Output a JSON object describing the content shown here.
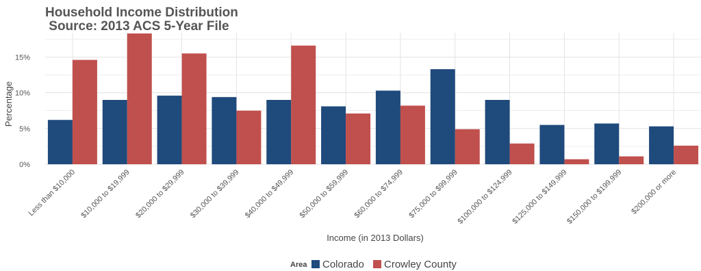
{
  "chart_data": {
    "type": "bar",
    "title_line1": "Household Income Distribution",
    "title_line2": " Source: 2013 ACS 5-Year File",
    "xlabel": "Income (in 2013 Dollars)",
    "ylabel": "Percentage",
    "ylim": [
      0,
      0.18
    ],
    "yticks": [
      0,
      0.05,
      0.1,
      0.15
    ],
    "ytick_labels": [
      "0%",
      "5%",
      "10%",
      "15%"
    ],
    "grid": true,
    "legend": {
      "title": "Area",
      "position": "bottom"
    },
    "categories": [
      "Less than $10,000",
      "$10,000 to $19,999",
      "$20,000 to $29,999",
      "$30,000 to $39,999",
      "$40,000 to $49,999",
      "$50,000 to $59,999",
      "$60,000 to $74,999",
      "$75,000 to $99,999",
      "$100,000 to $124,999",
      "$125,000 to $149,999",
      "$150,000 to $199,999",
      "$200,000 or more"
    ],
    "series": [
      {
        "name": "Colorado",
        "color": "#1f4a7c",
        "values": [
          0.062,
          0.09,
          0.096,
          0.094,
          0.09,
          0.081,
          0.103,
          0.133,
          0.09,
          0.055,
          0.057,
          0.053
        ]
      },
      {
        "name": "Crowley County",
        "color": "#c0504d",
        "values": [
          0.146,
          0.183,
          0.155,
          0.075,
          0.166,
          0.071,
          0.082,
          0.049,
          0.029,
          0.007,
          0.011,
          0.026
        ]
      }
    ]
  }
}
